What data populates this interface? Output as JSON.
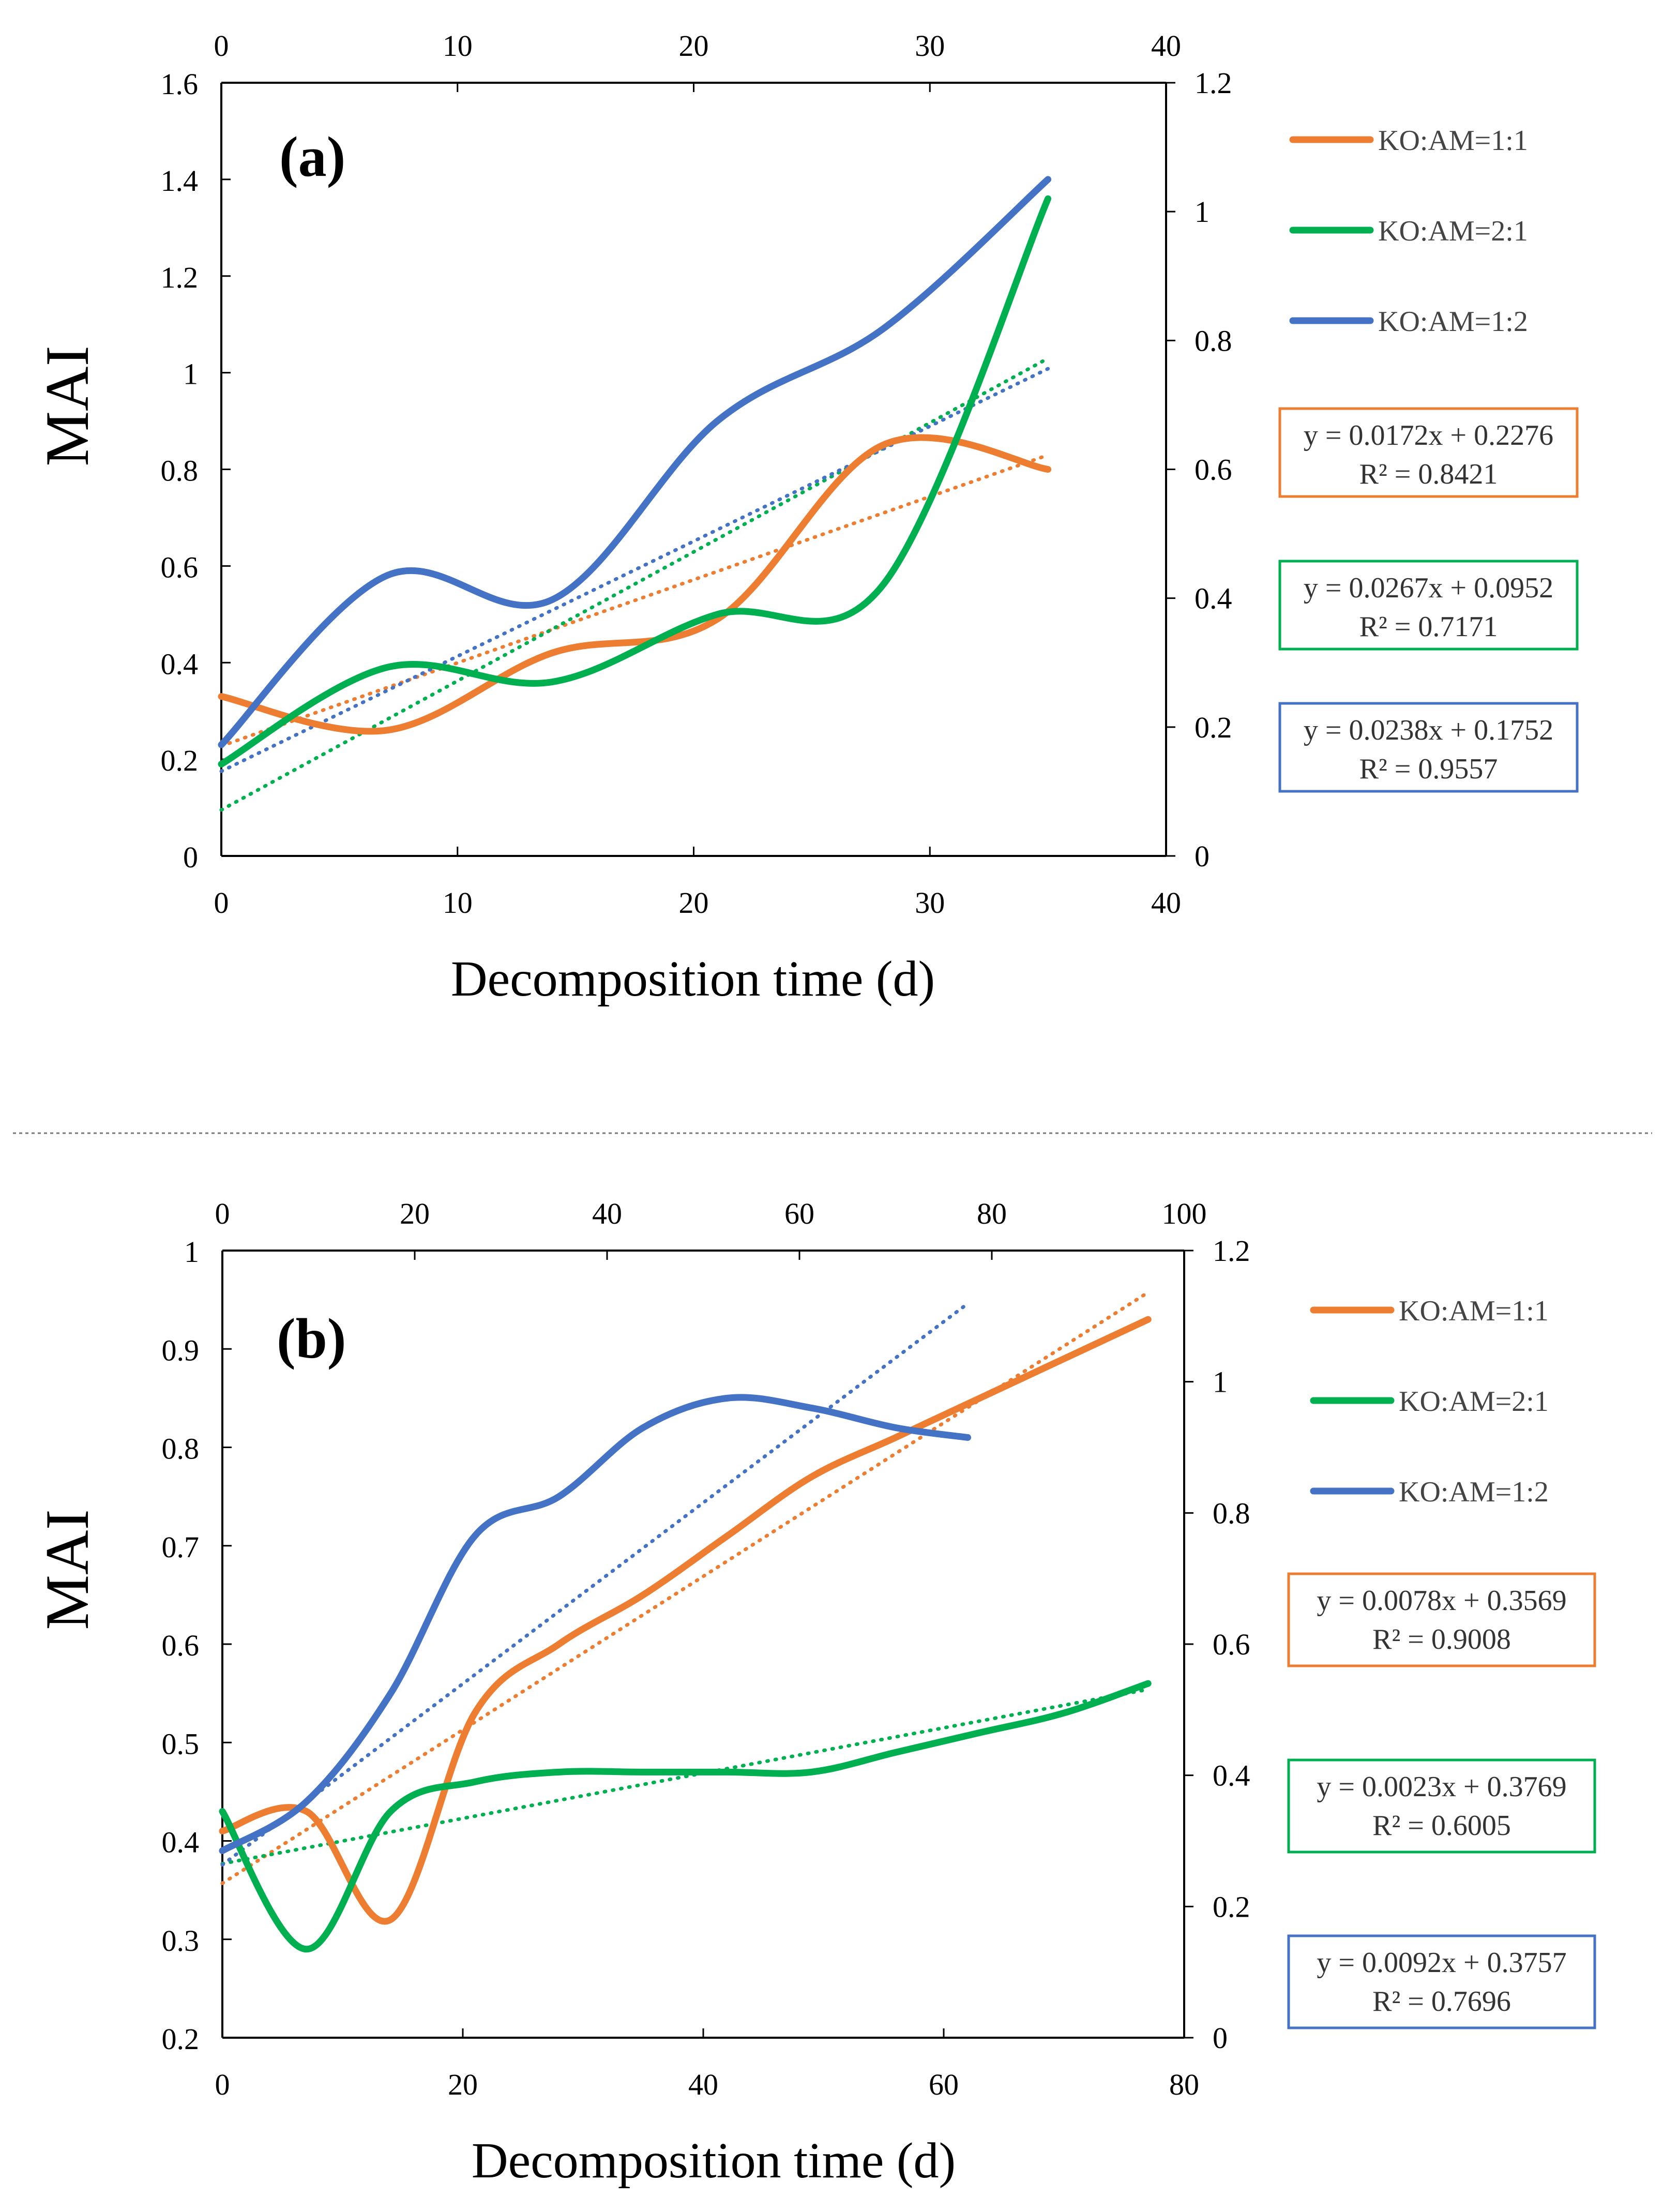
{
  "chart_data": [
    {
      "type": "line",
      "panel_label": "(a)",
      "xlabel": "Decomposition time (d)",
      "ylabel": "MAI",
      "xlim": [
        0,
        40
      ],
      "ylim": [
        0,
        1.6
      ],
      "x_ticks": [
        0,
        10,
        20,
        30,
        40
      ],
      "y_ticks": [
        0,
        0.2,
        0.4,
        0.6,
        0.8,
        1,
        1.2,
        1.4,
        1.6
      ],
      "secondary_x_ticks": [
        0,
        10,
        20,
        30,
        40
      ],
      "secondary_ylim": [
        0,
        1.2
      ],
      "secondary_y_ticks": [
        0,
        0.2,
        0.4,
        0.6,
        0.8,
        1,
        1.2
      ],
      "grid": false,
      "legend_position": "right",
      "series": [
        {
          "name": "KO:AM=1:1",
          "color": "#ED7D31",
          "x": [
            0,
            7,
            14,
            21,
            28,
            35
          ],
          "y": [
            0.33,
            0.26,
            0.42,
            0.49,
            0.85,
            0.8
          ],
          "trendline": {
            "equation": "y = 0.0172x + 0.2276",
            "r2": "R² = 0.8421",
            "slope": 0.0172,
            "intercept": 0.2276
          }
        },
        {
          "name": "KO:AM=2:1",
          "color": "#00B050",
          "x": [
            0,
            7,
            14,
            21,
            28,
            35
          ],
          "y": [
            0.19,
            0.39,
            0.36,
            0.5,
            0.56,
            1.36
          ],
          "trendline": {
            "equation": "y = 0.0267x + 0.0952",
            "r2": "R² = 0.7171",
            "slope": 0.0267,
            "intercept": 0.0952
          }
        },
        {
          "name": "KO:AM=1:2",
          "color": "#4472C4",
          "x": [
            0,
            7,
            14,
            21,
            28,
            35
          ],
          "y": [
            0.23,
            0.58,
            0.53,
            0.9,
            1.09,
            1.4
          ],
          "trendline": {
            "equation": "y = 0.0238x + 0.1752",
            "r2": "R² = 0.9557",
            "slope": 0.0238,
            "intercept": 0.1752
          }
        }
      ]
    },
    {
      "type": "line",
      "panel_label": "(b)",
      "xlabel": "Decomposition time (d)",
      "ylabel": "MAI",
      "xlim": [
        0,
        80
      ],
      "ylim": [
        0.2,
        1
      ],
      "x_ticks": [
        0,
        20,
        40,
        60,
        80
      ],
      "y_ticks": [
        0.2,
        0.3,
        0.4,
        0.5,
        0.6,
        0.7,
        0.8,
        0.9,
        1
      ],
      "secondary_x_ticks": [
        0,
        20,
        40,
        60,
        80,
        100
      ],
      "secondary_ylim": [
        0,
        1.2
      ],
      "secondary_y_ticks": [
        0,
        0.2,
        0.4,
        0.6,
        0.8,
        1,
        1.2
      ],
      "grid": false,
      "legend_position": "right",
      "series": [
        {
          "name": "KO:AM=1:1",
          "color": "#ED7D31",
          "x": [
            0,
            7,
            14,
            21,
            28,
            35,
            42,
            49,
            56,
            63,
            70,
            77
          ],
          "y": [
            0.41,
            0.43,
            0.32,
            0.53,
            0.6,
            0.65,
            0.71,
            0.77,
            0.81,
            0.85,
            0.89,
            0.93
          ],
          "trendline": {
            "equation": "y = 0.0078x + 0.3569",
            "r2": "R² = 0.9008",
            "slope": 0.0078,
            "intercept": 0.3569
          }
        },
        {
          "name": "KO:AM=2:1",
          "color": "#00B050",
          "x": [
            0,
            7,
            14,
            21,
            28,
            35,
            42,
            49,
            56,
            63,
            70,
            77
          ],
          "y": [
            0.43,
            0.29,
            0.43,
            0.46,
            0.47,
            0.47,
            0.47,
            0.47,
            0.49,
            0.51,
            0.53,
            0.56
          ],
          "trendline": {
            "equation": "y = 0.0023x + 0.3769",
            "r2": "R² = 0.6005",
            "slope": 0.0023,
            "intercept": 0.3769
          }
        },
        {
          "name": "KO:AM=1:2",
          "color": "#4472C4",
          "x": [
            0,
            7,
            14,
            21,
            28,
            35,
            42,
            49,
            56,
            62
          ],
          "y": [
            0.39,
            0.44,
            0.55,
            0.71,
            0.75,
            0.82,
            0.85,
            0.84,
            0.82,
            0.81
          ],
          "trendline": {
            "equation": "y = 0.0092x + 0.3757",
            "r2": "R² = 0.7696",
            "slope": 0.0092,
            "intercept": 0.3757
          }
        }
      ]
    }
  ]
}
